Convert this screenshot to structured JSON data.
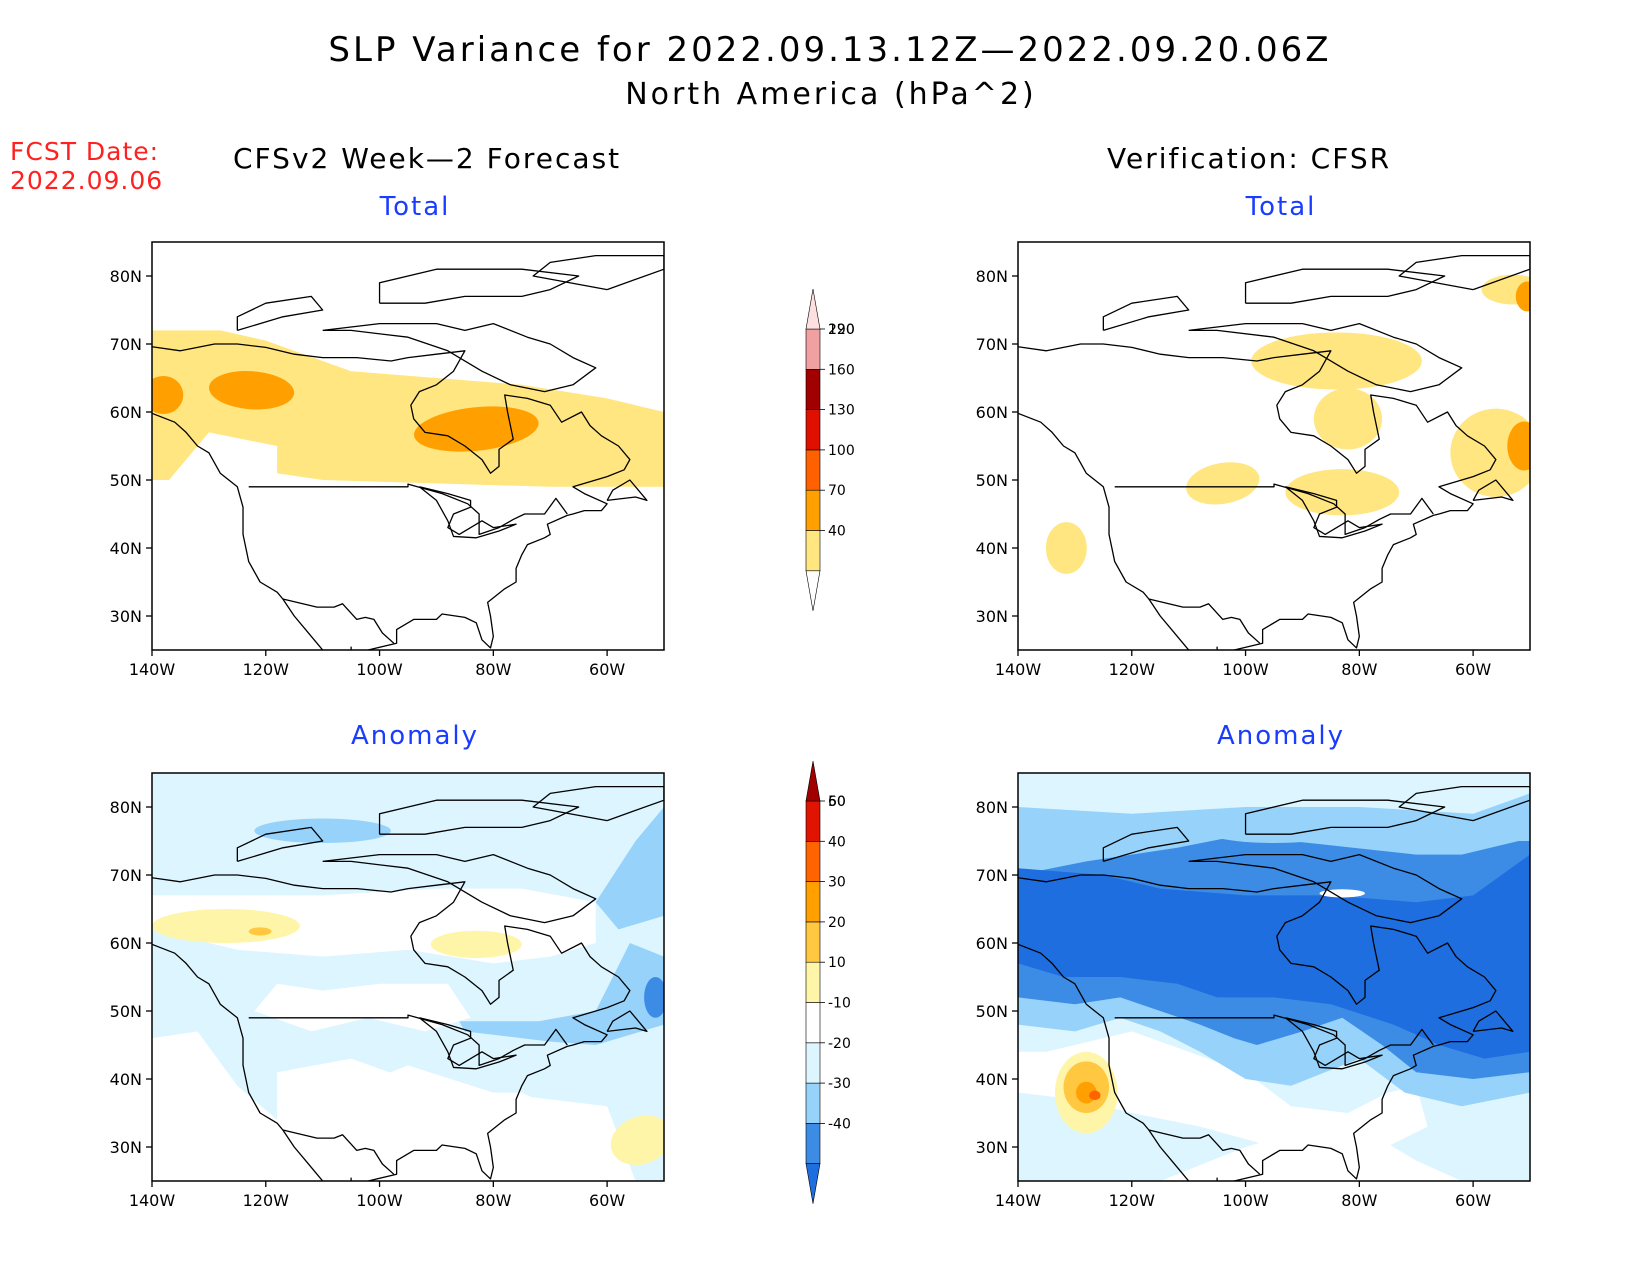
{
  "header": {
    "title": "SLP Variance for 2022.09.13.12Z—2022.09.20.06Z",
    "subtitle": "North America (hPa^2)",
    "fcst_label": "FCST Date:",
    "fcst_date": "2022.09.06",
    "left_heading": "CFSv2 Week—2 Forecast",
    "right_heading": "Verification: CFSR"
  },
  "panel_titles": {
    "fcst_total": "Total",
    "fcst_anomaly": "Anomaly",
    "verif_total": "Total",
    "verif_anomaly": "Anomaly"
  },
  "axes": {
    "lat_labels": [
      "30N",
      "40N",
      "50N",
      "60N",
      "70N",
      "80N"
    ],
    "lon_labels": [
      "140W",
      "120W",
      "100W",
      "80W",
      "60W"
    ]
  },
  "colors": {
    "total_levels": [
      "#ffe680",
      "#ffa000",
      "#ff6000",
      "#e01000",
      "#a00000",
      "#f0a0a0",
      "#ffe0e0"
    ],
    "anomaly_levels": [
      "#1e6ee0",
      "#3c8ce6",
      "#96d2fa",
      "#dcf5ff",
      "#ffffff",
      "#fff5a8",
      "#ffc840",
      "#ffa000",
      "#ff6400",
      "#e01400",
      "#a00000"
    ]
  },
  "chart_data": [
    {
      "type": "heatmap",
      "panel": "CFSv2 Week-2 Forecast - Total",
      "title": "Total",
      "xlim": [
        -140,
        -50
      ],
      "ylim": [
        25,
        85
      ],
      "x_ticks": [
        -140,
        -120,
        -100,
        -80,
        -60
      ],
      "y_ticks": [
        30,
        40,
        50,
        60,
        70,
        80
      ],
      "regions": [
        {
          "lon": [
            -140,
            -50
          ],
          "lat": [
            50,
            72
          ],
          "range": "40-70"
        },
        {
          "lon": [
            -130,
            -115
          ],
          "lat": [
            59,
            66
          ],
          "range": "70-100"
        },
        {
          "lon": [
            -92,
            -72
          ],
          "lat": [
            54,
            61
          ],
          "range": "70-100"
        }
      ]
    },
    {
      "type": "heatmap",
      "panel": "Verification: CFSR - Total",
      "title": "Total",
      "xlim": [
        -140,
        -50
      ],
      "ylim": [
        25,
        85
      ],
      "x_ticks": [
        -140,
        -120,
        -100,
        -80,
        -60
      ],
      "y_ticks": [
        30,
        40,
        50,
        60,
        70,
        80
      ],
      "regions": [
        {
          "lon": [
            -95,
            -70
          ],
          "lat": [
            55,
            71
          ],
          "range": "40-70"
        },
        {
          "lon": [
            -65,
            -50
          ],
          "lat": [
            47,
            60
          ],
          "range": "40-70"
        },
        {
          "lon": [
            -52,
            -50
          ],
          "lat": [
            51,
            57
          ],
          "range": "70-100"
        },
        {
          "lon": [
            -95,
            -75
          ],
          "lat": [
            46,
            52
          ],
          "range": "40-70"
        },
        {
          "lon": [
            -110,
            -98
          ],
          "lat": [
            47,
            52
          ],
          "range": "40-70"
        },
        {
          "lon": [
            -135,
            -128
          ],
          "lat": [
            37,
            43
          ],
          "range": "40-70"
        }
      ]
    },
    {
      "type": "heatmap",
      "panel": "CFSv2 Week-2 Forecast - Anomaly",
      "title": "Anomaly",
      "xlim": [
        -140,
        -50
      ],
      "ylim": [
        25,
        85
      ],
      "x_ticks": [
        -140,
        -120,
        -100,
        -80,
        -60
      ],
      "y_ticks": [
        30,
        40,
        50,
        60,
        70,
        80
      ],
      "regions": [
        {
          "lon": [
            -140,
            -50
          ],
          "lat": [
            25,
            85
          ],
          "range": "-10-(-20) background in north and west"
        },
        {
          "lon": [
            -140,
            -110
          ],
          "lat": [
            58,
            66
          ],
          "range": "10-20"
        },
        {
          "lon": [
            -90,
            -75
          ],
          "lat": [
            57,
            62
          ],
          "range": "10-20"
        },
        {
          "lon": [
            -75,
            -50
          ],
          "lat": [
            45,
            55
          ],
          "range": "-20-(-30)"
        },
        {
          "lon": [
            -60,
            -50
          ],
          "lat": [
            27,
            35
          ],
          "range": "10-20"
        }
      ]
    },
    {
      "type": "heatmap",
      "panel": "Verification: CFSR - Anomaly",
      "title": "Anomaly",
      "xlim": [
        -140,
        -50
      ],
      "ylim": [
        25,
        85
      ],
      "x_ticks": [
        -140,
        -120,
        -100,
        -80,
        -60
      ],
      "y_ticks": [
        30,
        40,
        50,
        60,
        70,
        80
      ],
      "regions": [
        {
          "lon": [
            -140,
            -50
          ],
          "lat": [
            50,
            73
          ],
          "range": "-30-(-40)"
        },
        {
          "lon": [
            -70,
            -50
          ],
          "lat": [
            38,
            52
          ],
          "range": "-30-(-40)"
        },
        {
          "lon": [
            -135,
            -122
          ],
          "lat": [
            32,
            44
          ],
          "range": "10-40"
        },
        {
          "lon": [
            -130,
            -125
          ],
          "lat": [
            37,
            39
          ],
          "range": "30-40"
        }
      ]
    }
  ],
  "colorbars": {
    "total": [
      "40",
      "70",
      "100",
      "130",
      "160",
      "190",
      "220"
    ],
    "anomaly": [
      "-40",
      "-30",
      "-20",
      "-10",
      "10",
      "20",
      "30",
      "40",
      "50",
      "60"
    ]
  }
}
